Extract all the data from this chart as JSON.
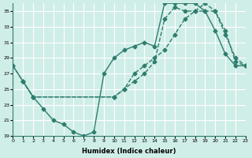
{
  "xlabel": "Humidex (Indice chaleur)",
  "bg_color": "#d0eee8",
  "line_color": "#2e7d6e",
  "grid_color": "#ffffff",
  "xlim": [
    0,
    23
  ],
  "ylim": [
    19,
    36
  ],
  "yticks": [
    19,
    21,
    23,
    25,
    27,
    29,
    31,
    33,
    35
  ],
  "xticks": [
    0,
    1,
    2,
    3,
    4,
    5,
    6,
    7,
    8,
    9,
    10,
    11,
    12,
    13,
    14,
    15,
    16,
    17,
    18,
    19,
    20,
    21,
    22,
    23
  ],
  "line1_x": [
    0,
    1,
    2,
    10,
    11,
    12,
    13,
    14,
    15,
    16,
    17,
    18,
    19,
    20,
    21,
    22,
    23
  ],
  "line1_y": [
    28,
    26,
    24,
    24,
    25,
    27,
    28,
    29,
    30,
    32,
    34,
    35,
    36,
    35,
    32,
    29,
    28
  ],
  "line2_x": [
    0,
    1,
    2,
    3,
    4,
    5,
    6,
    7,
    8,
    9,
    10,
    11,
    12,
    13,
    14,
    15,
    16,
    17,
    18,
    19,
    20,
    21,
    22,
    23
  ],
  "line2_y": [
    28,
    26,
    24,
    22.5,
    21,
    20.5,
    19.5,
    19,
    19.5,
    27,
    29,
    30,
    30.5,
    31,
    30.5,
    36,
    36,
    36,
    36,
    35,
    32.5,
    29.5,
    28,
    28
  ],
  "line3_x": [
    1,
    2,
    10,
    11,
    12,
    13,
    14,
    15,
    16,
    17,
    18,
    19,
    20,
    21,
    22,
    23
  ],
  "line3_y": [
    26,
    24,
    24,
    25,
    26,
    27,
    28.5,
    34,
    35.5,
    35,
    35,
    35,
    35,
    32.5,
    28.5,
    28
  ]
}
